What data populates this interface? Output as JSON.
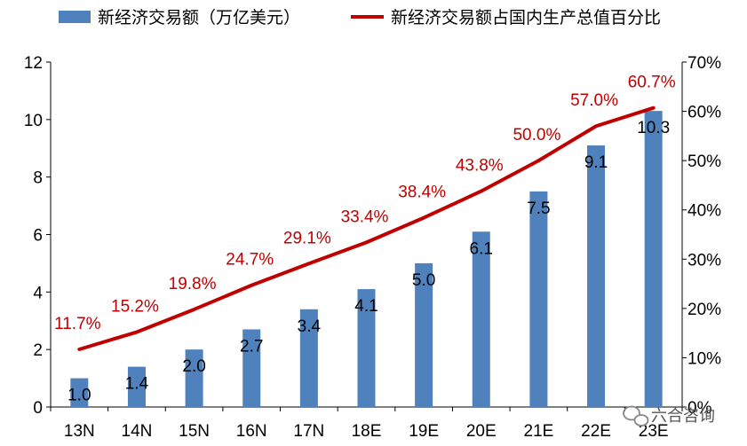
{
  "chart_data": {
    "type": "bar",
    "categories": [
      "13N",
      "14N",
      "15N",
      "16N",
      "17N",
      "18E",
      "19E",
      "20E",
      "21E",
      "22E",
      "23E"
    ],
    "series": [
      {
        "name": "新经济交易额（万亿美元）",
        "kind": "bar",
        "axis": "left",
        "color": "#4f81bd",
        "values": [
          1.0,
          1.4,
          2.0,
          2.7,
          3.4,
          4.1,
          5.0,
          6.1,
          7.5,
          9.1,
          10.3
        ],
        "labels": [
          "1.0",
          "1.4",
          "2.0",
          "2.7",
          "3.4",
          "4.1",
          "5.0",
          "6.1",
          "7.5",
          "9.1",
          "10.3"
        ]
      },
      {
        "name": "新经济交易额占国内生产总值百分比",
        "kind": "line",
        "axis": "right",
        "color": "#c00000",
        "values": [
          11.7,
          15.2,
          19.8,
          24.7,
          29.1,
          33.4,
          38.4,
          43.8,
          50.0,
          57.0,
          60.7
        ],
        "labels": [
          "11.7%",
          "15.2%",
          "19.8%",
          "24.7%",
          "29.1%",
          "33.4%",
          "38.4%",
          "43.8%",
          "50.0%",
          "57.0%",
          "60.7%"
        ]
      }
    ],
    "left_axis": {
      "ylim": [
        0,
        12
      ],
      "ticks": [
        0,
        2,
        4,
        6,
        8,
        10,
        12
      ],
      "tick_labels": [
        "0",
        "2",
        "4",
        "6",
        "8",
        "10",
        "12"
      ]
    },
    "right_axis": {
      "ylim": [
        0,
        70
      ],
      "ticks": [
        0,
        10,
        20,
        30,
        40,
        50,
        60,
        70
      ],
      "tick_labels": [
        "0%",
        "10%",
        "20%",
        "30%",
        "40%",
        "50%",
        "60%",
        "70%"
      ]
    },
    "grid": false,
    "legend_position": "top"
  },
  "watermark": {
    "text": "六合咨询",
    "icon": "wechat-icon"
  }
}
